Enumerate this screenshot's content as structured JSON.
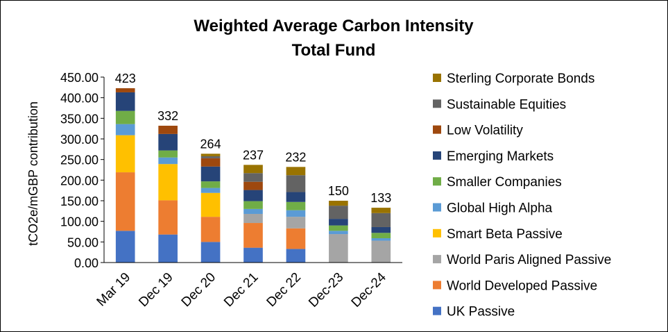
{
  "chart_data": {
    "type": "bar",
    "stacked": true,
    "title": "Weighted Average Carbon Intensity",
    "subtitle": "Total Fund",
    "xlabel": "",
    "ylabel": "tCO2e/mGBP contribution",
    "ylim": [
      0,
      450
    ],
    "y_ticks": [
      "0.00",
      "50.00",
      "100.00",
      "150.00",
      "200.00",
      "250.00",
      "300.00",
      "350.00",
      "400.00",
      "450.00"
    ],
    "grid": false,
    "legend_position": "right",
    "categories": [
      "Mar 19",
      "Dec 19",
      "Dec 20",
      "Dec 21",
      "Dec 22",
      "Dec-23",
      "Dec-24"
    ],
    "totals": [
      "423",
      "332",
      "264",
      "237",
      "232",
      "150",
      "133"
    ],
    "series": [
      {
        "name": "UK Passive",
        "color": "#4472C4",
        "values": [
          77,
          68,
          50,
          36,
          33,
          0,
          0
        ]
      },
      {
        "name": "World Developed Passive",
        "color": "#ED7D31",
        "values": [
          142,
          83,
          61,
          60,
          50,
          0,
          0
        ]
      },
      {
        "name": "World Paris Aligned Passive",
        "color": "#A5A5A5",
        "values": [
          0,
          0,
          0,
          22,
          28,
          69,
          53
        ]
      },
      {
        "name": "Smart Beta Passive",
        "color": "#FFC000",
        "values": [
          90,
          88,
          58,
          0,
          0,
          0,
          0
        ]
      },
      {
        "name": "Global High Alpha",
        "color": "#5B9BD5",
        "values": [
          27,
          16,
          12,
          12,
          16,
          8,
          6
        ]
      },
      {
        "name": "Smaller Companies",
        "color": "#70AD47",
        "values": [
          32,
          17,
          16,
          19,
          20,
          13,
          13
        ]
      },
      {
        "name": "Emerging Markets",
        "color": "#264478",
        "values": [
          45,
          40,
          36,
          27,
          24,
          16,
          14
        ]
      },
      {
        "name": "Low Volatility",
        "color": "#9E480E",
        "values": [
          10,
          20,
          20,
          20,
          0,
          0,
          0
        ]
      },
      {
        "name": "Sustainable Equities",
        "color": "#636363",
        "values": [
          0,
          0,
          5,
          21,
          41,
          32,
          34
        ]
      },
      {
        "name": "Sterling Corporate Bonds",
        "color": "#997300",
        "values": [
          0,
          0,
          6,
          20,
          20,
          12,
          13
        ]
      }
    ]
  }
}
